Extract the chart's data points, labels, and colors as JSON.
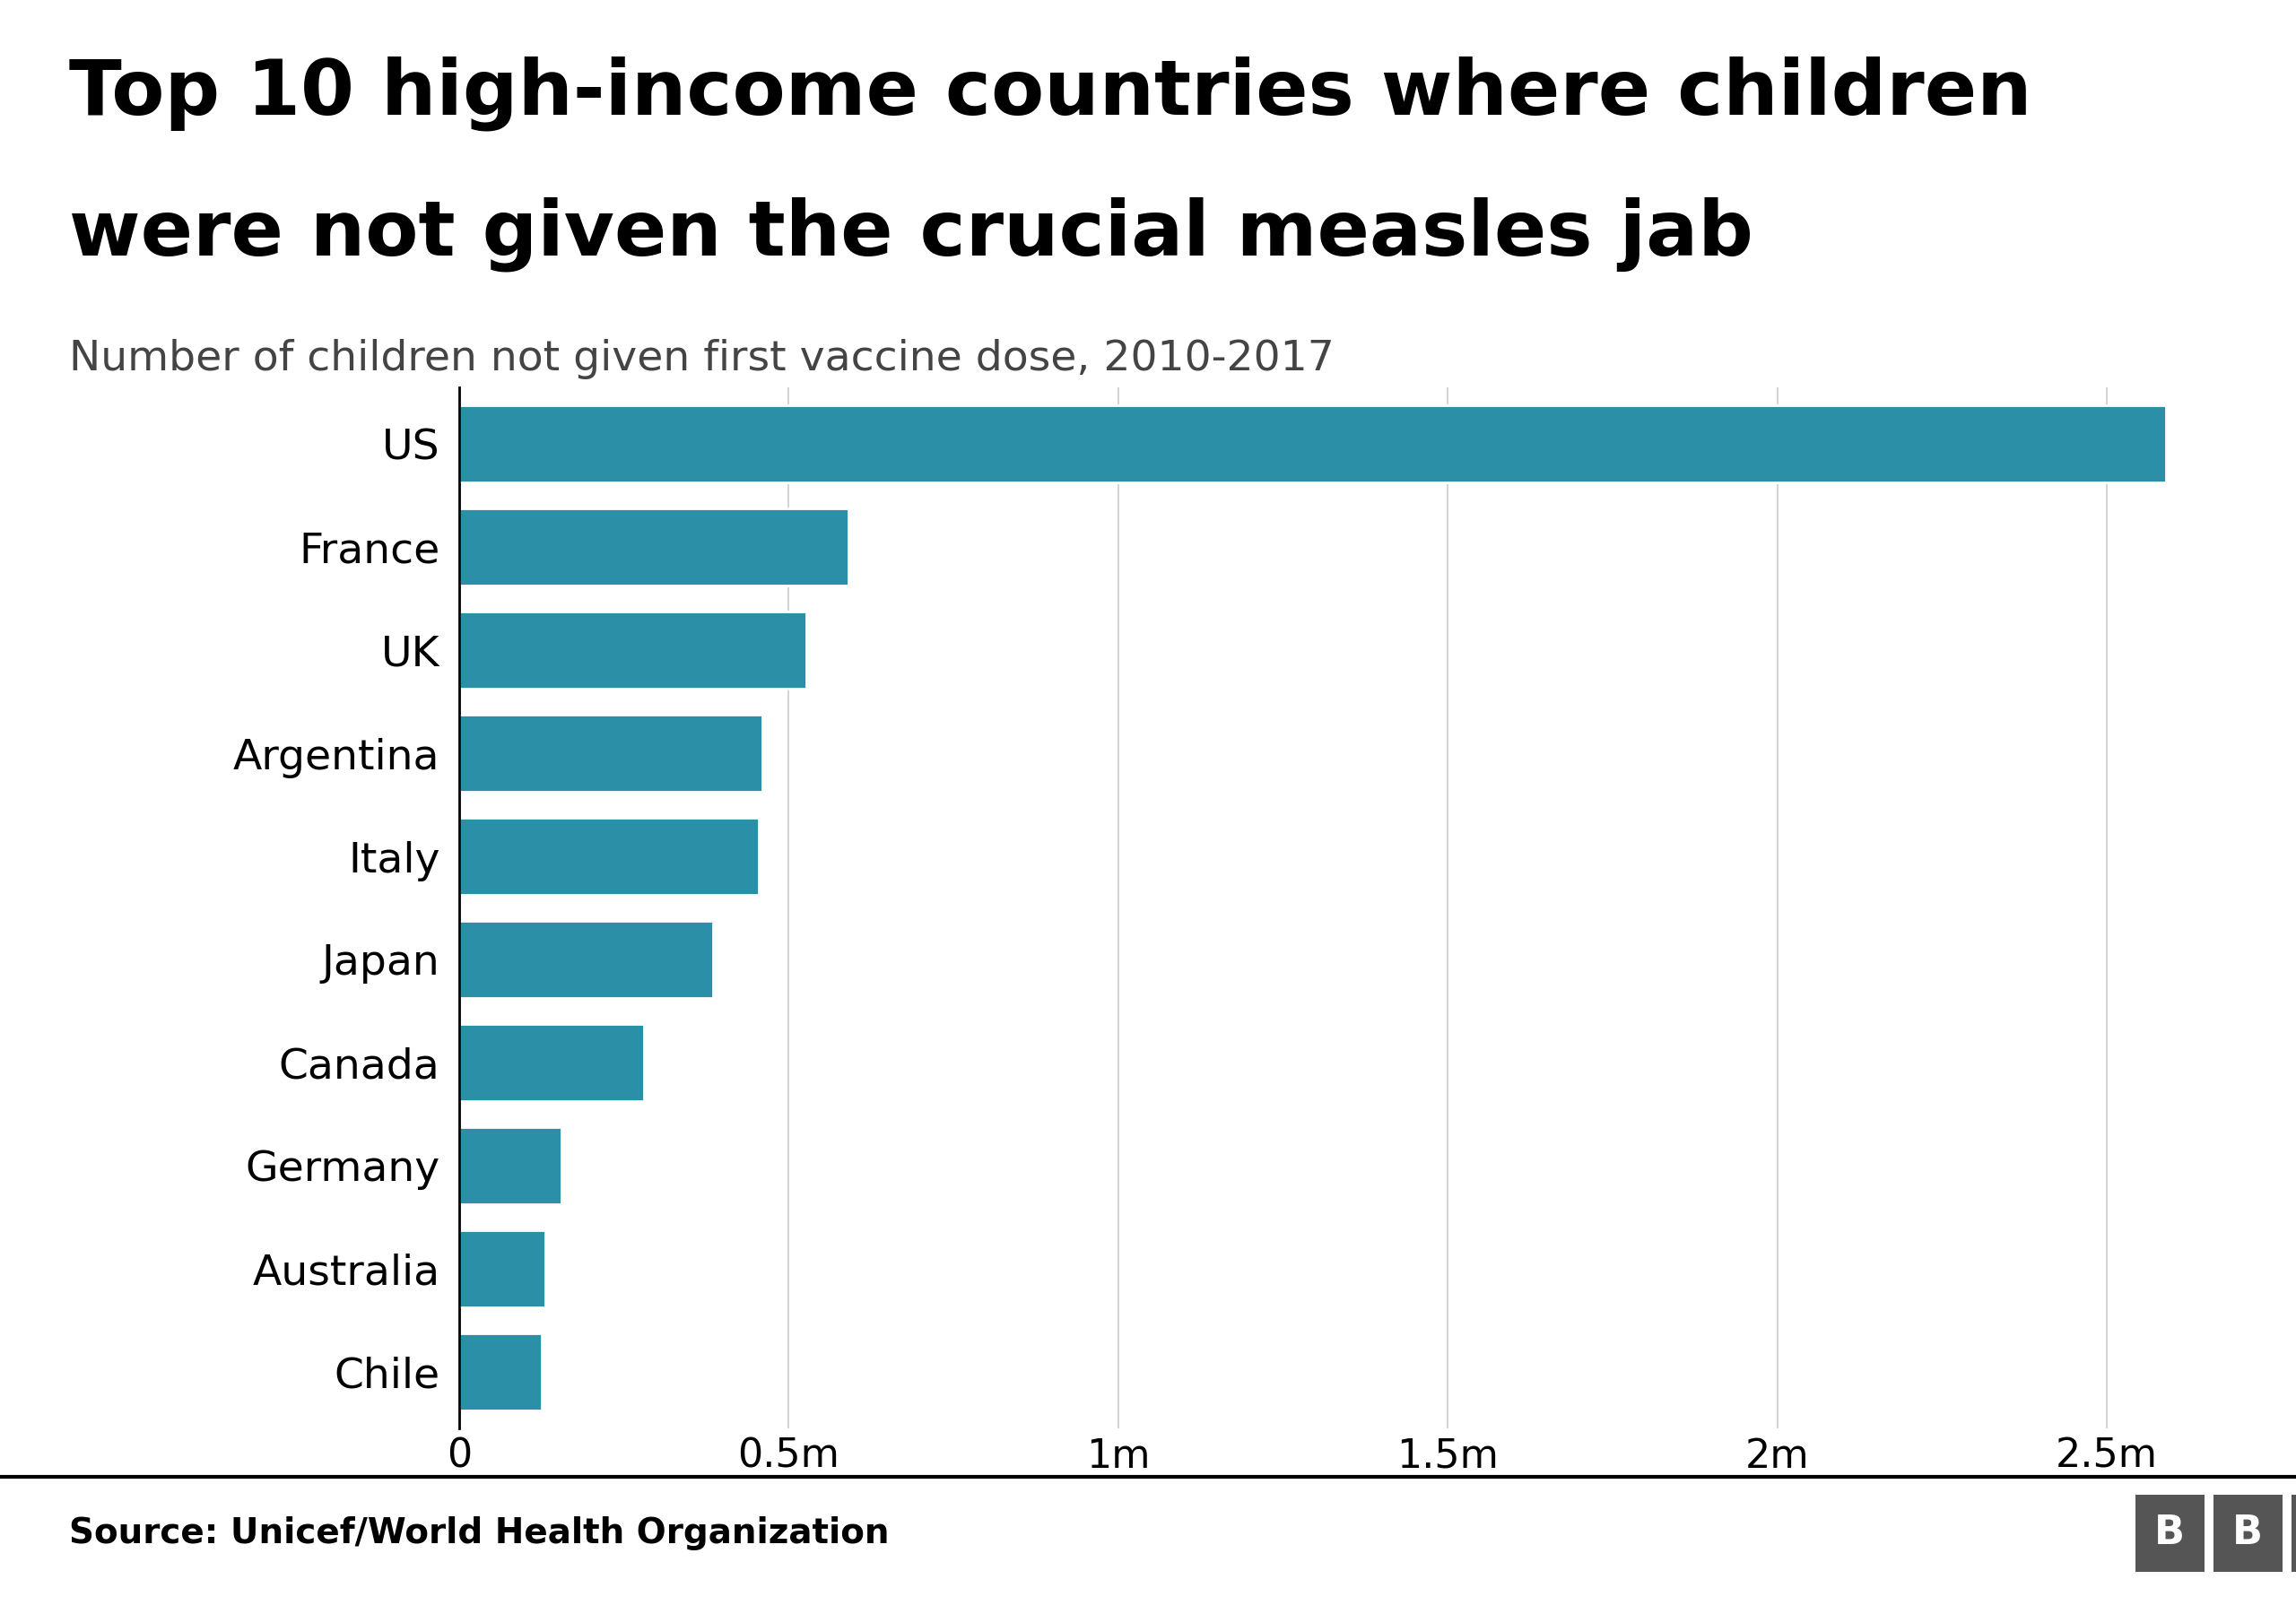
{
  "title_line1": "Top 10 high-income countries where children",
  "title_line2": "were not given the crucial measles jab",
  "subtitle": "Number of children not given first vaccine dose, 2010-2017",
  "source": "Source: Unicef/World Health Organization",
  "countries": [
    "US",
    "France",
    "UK",
    "Argentina",
    "Italy",
    "Japan",
    "Canada",
    "Germany",
    "Australia",
    "Chile"
  ],
  "values": [
    2590000,
    590000,
    527000,
    460000,
    455000,
    385000,
    280000,
    155000,
    130000,
    125000
  ],
  "bar_color": "#2b8fa8",
  "background_color": "#ffffff",
  "title_color": "#000000",
  "subtitle_color": "#444444",
  "source_color": "#000000",
  "xlim": [
    0,
    2700000
  ],
  "xtick_values": [
    0,
    500000,
    1000000,
    1500000,
    2000000,
    2500000
  ],
  "xtick_labels": [
    "0",
    "0.5m",
    "1m",
    "1.5m",
    "2m",
    "2.5m"
  ],
  "title_fontsize": 62,
  "subtitle_fontsize": 34,
  "ytick_fontsize": 34,
  "xtick_fontsize": 32,
  "source_fontsize": 28,
  "bar_height": 0.75,
  "footer_line_color": "#000000",
  "bbc_box_color": "#555555",
  "bbc_text_color": "#ffffff",
  "grid_color": "#cccccc"
}
